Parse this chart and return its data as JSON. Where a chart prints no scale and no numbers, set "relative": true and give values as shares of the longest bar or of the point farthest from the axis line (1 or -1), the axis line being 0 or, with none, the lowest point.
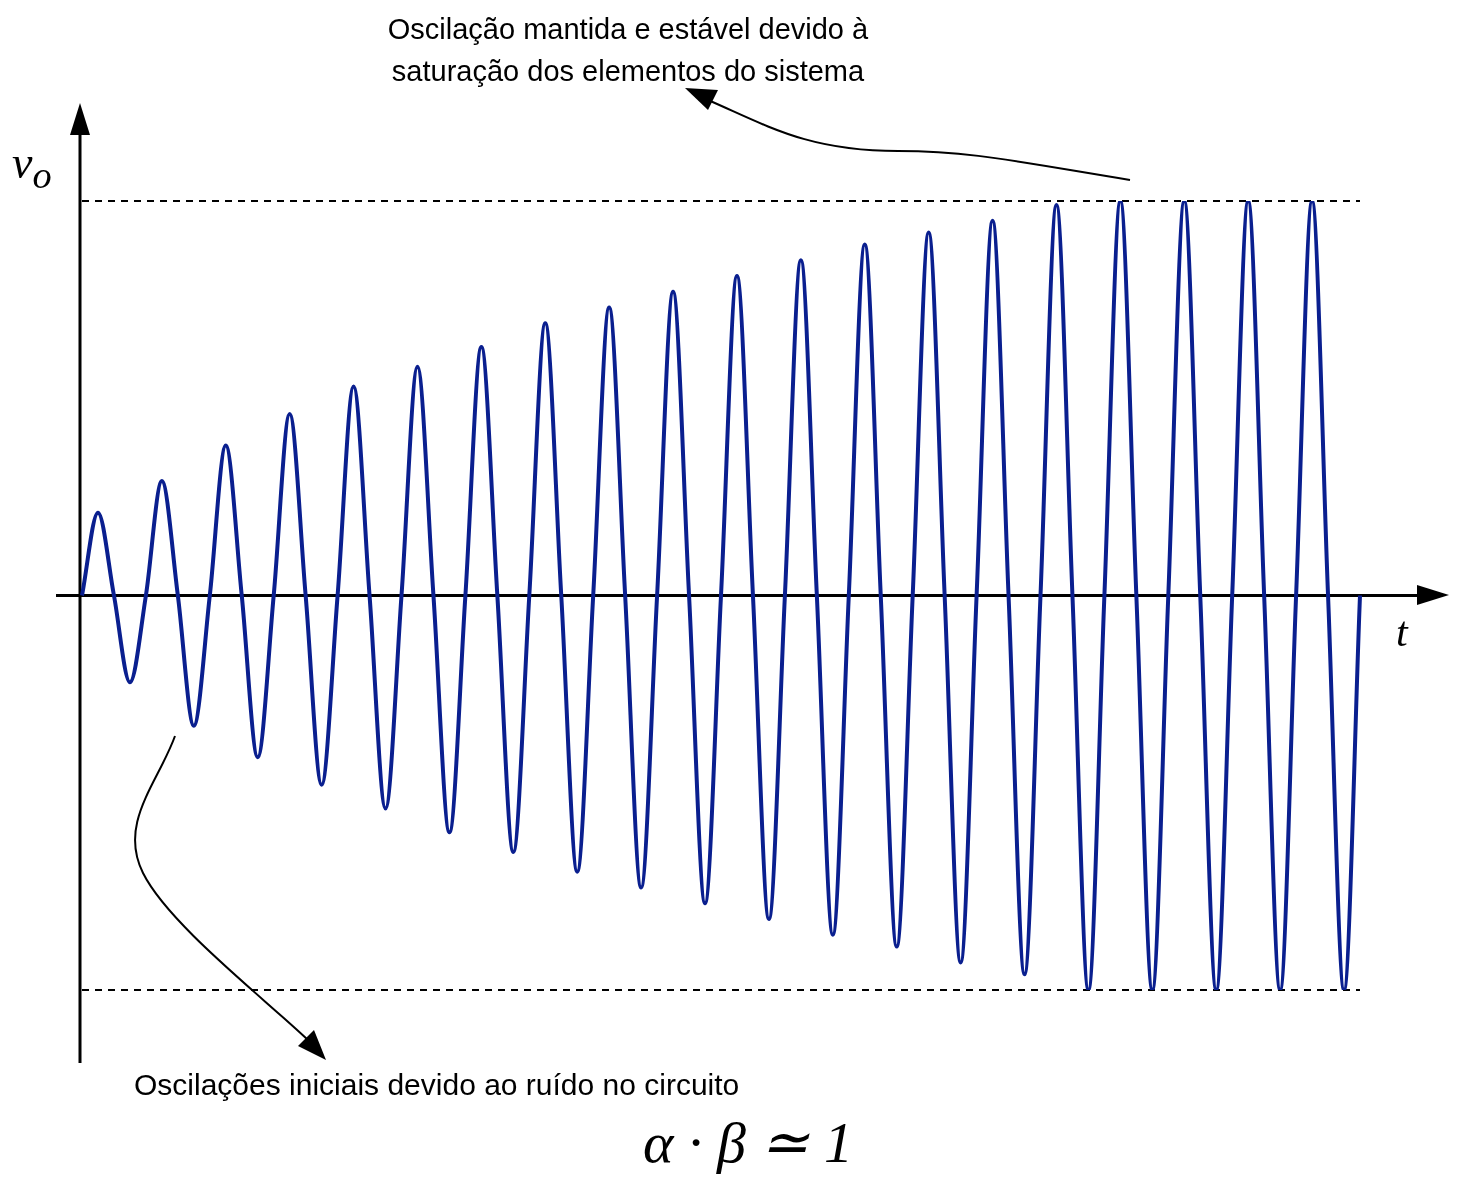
{
  "chart_data": {
    "type": "line",
    "xlabel": "t",
    "ylabel": "v$_{o}$",
    "relative": true,
    "legend": false,
    "marker": "none",
    "line_style": "solid",
    "categories": [
      null,
      null,
      null,
      null,
      null,
      null,
      null,
      null,
      null,
      null,
      null,
      null,
      null,
      null,
      null,
      null,
      null,
      null,
      null,
      null,
      null,
      null,
      null,
      null,
      null,
      null,
      null,
      null,
      null,
      null,
      null,
      null,
      null,
      null,
      null,
      null,
      null,
      null,
      null,
      null,
      null,
      null,
      null,
      null,
      null,
      null,
      null,
      null,
      null,
      null,
      null,
      null,
      null,
      null,
      null,
      null,
      null,
      null,
      null,
      null,
      null,
      null,
      null,
      null,
      null,
      null,
      null,
      null,
      null,
      null,
      null,
      null,
      null,
      null,
      null,
      null,
      null,
      null,
      null,
      null,
      null
    ],
    "series": [
      {
        "color": "#0a1f8f",
        "values": [
          0,
          0.21,
          0,
          -0.22,
          0,
          0.29,
          0,
          -0.33,
          0,
          0.38,
          0,
          -0.41,
          0,
          0.46,
          0,
          -0.48,
          0,
          0.53,
          0,
          -0.54,
          0,
          0.58,
          0,
          -0.6,
          0,
          0.63,
          0,
          -0.65,
          0,
          0.69,
          0,
          -0.7,
          0,
          0.73,
          0,
          -0.74,
          0,
          0.77,
          0,
          -0.78,
          0,
          0.81,
          0,
          -0.82,
          0,
          0.85,
          0,
          -0.86,
          0,
          0.89,
          0,
          -0.89,
          0,
          0.92,
          0,
          -0.93,
          0,
          0.95,
          0,
          -0.96,
          0,
          0.99,
          0,
          -1,
          0,
          1,
          0,
          -1,
          0,
          1,
          0,
          -1,
          0,
          1,
          0,
          -1,
          0,
          1,
          0,
          -1,
          0
        ]
      }
    ],
    "ref_lines": [
      {
        "axis": "y",
        "value": 1,
        "color": "#000000",
        "line_style": "dashed"
      },
      {
        "axis": "y",
        "value": -1,
        "color": "#000000",
        "line_style": "dashed"
      }
    ],
    "annotations": [
      "Oscilação mantida e estável devido à saturação dos elementos do sistema",
      "Oscilações iniciais devido ao ruído no circuito",
      "α · β ≃ 1"
    ]
  }
}
